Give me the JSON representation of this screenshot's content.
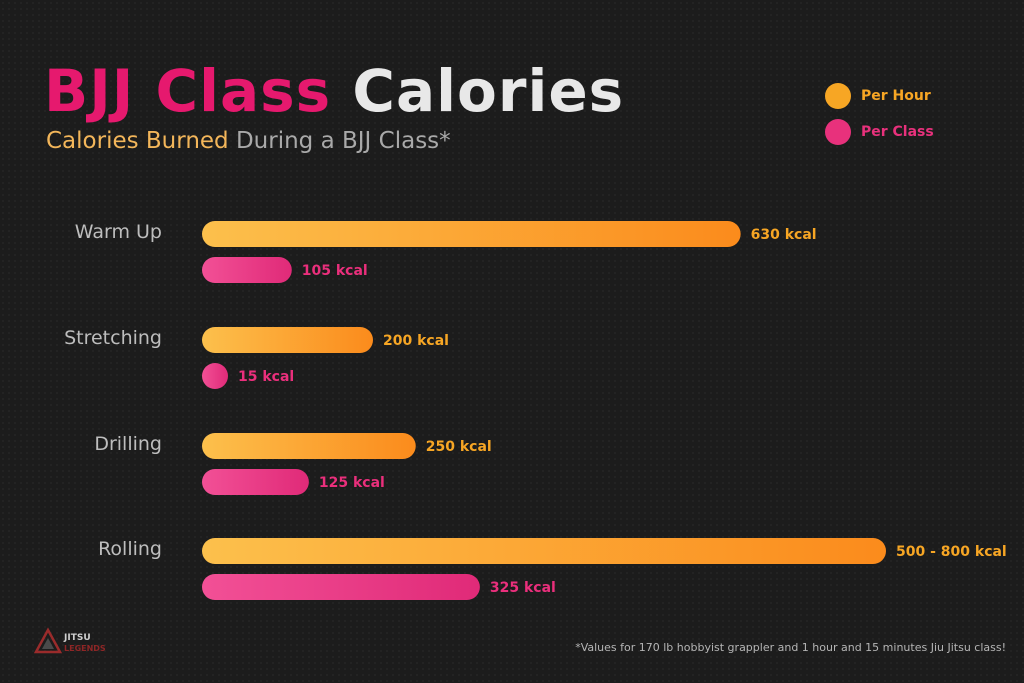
{
  "title": {
    "part1": "BJJ Class",
    "part2": "Calories"
  },
  "subtitle": {
    "part1": "Calories Burned",
    "part2": " During a BJJ Class*"
  },
  "legend": [
    {
      "label": "Per Hour",
      "color": "#f7a624"
    },
    {
      "label": "Per Class",
      "color": "#e8317c"
    }
  ],
  "colors": {
    "per_hour": "#f7a624",
    "per_hour_text": "#f7a624",
    "per_class": "#e8317c",
    "per_class_text": "#ea2f7c",
    "category_text": "#bdbdbd"
  },
  "chart_data": {
    "type": "bar",
    "orientation": "horizontal",
    "categories": [
      "Warm Up",
      "Stretching",
      "Drilling",
      "Rolling"
    ],
    "series": [
      {
        "name": "Per Hour",
        "values": [
          630,
          200,
          250,
          800
        ],
        "labels": [
          "630 kcal",
          "200 kcal",
          "250 kcal",
          "500 - 800 kcal"
        ]
      },
      {
        "name": "Per Class",
        "values": [
          105,
          15,
          125,
          325
        ],
        "labels": [
          "105 kcal",
          "15 kcal",
          "125 kcal",
          "325 kcal"
        ]
      }
    ],
    "xlim": [
      0,
      800
    ],
    "grid": false,
    "legend_position": "top-right"
  },
  "footnote": "*Values for 170 lb hobbyist grappler and 1 hour and 15 minutes Jiu Jitsu class!",
  "logo": {
    "line1": "JITSU",
    "line2": "LEGENDS"
  }
}
